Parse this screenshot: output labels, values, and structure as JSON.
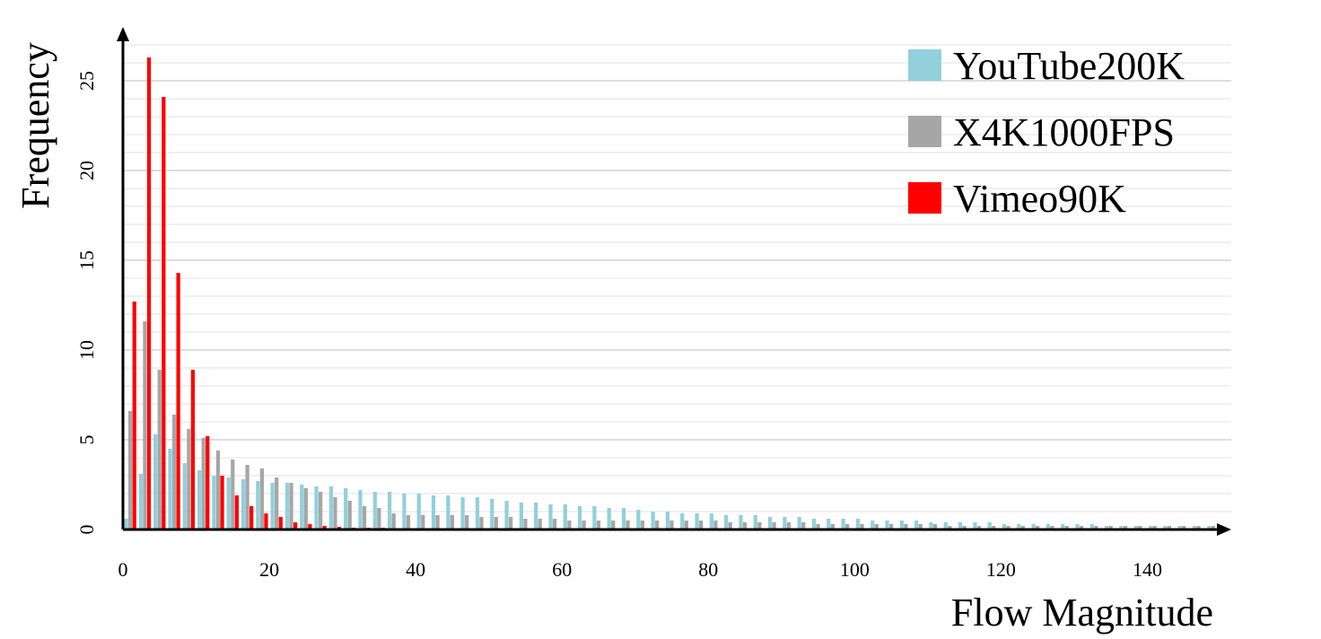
{
  "chart_data": {
    "type": "bar",
    "title": "",
    "xlabel": "Flow Magnitude",
    "ylabel": "Frequency",
    "xlim": [
      0,
      150
    ],
    "ylim": [
      0,
      27
    ],
    "x_ticks": [
      "0",
      "20",
      "40",
      "60",
      "80",
      "100",
      "120",
      "140"
    ],
    "y_ticks": [
      "0",
      "5",
      "10",
      "15",
      "20",
      "25"
    ],
    "grid": true,
    "legend": "top-right",
    "bin_width": 2,
    "x": [
      1,
      3,
      5,
      7,
      9,
      11,
      13,
      15,
      17,
      19,
      21,
      23,
      25,
      27,
      29,
      31,
      33,
      35,
      37,
      39,
      41,
      43,
      45,
      47,
      49,
      51,
      53,
      55,
      57,
      59,
      61,
      63,
      65,
      67,
      69,
      71,
      73,
      75,
      77,
      79,
      81,
      83,
      85,
      87,
      89,
      91,
      93,
      95,
      97,
      99,
      101,
      103,
      105,
      107,
      109,
      111,
      113,
      115,
      117,
      119,
      121,
      123,
      125,
      127,
      129,
      131,
      133,
      135,
      137,
      139,
      141,
      143,
      145,
      147,
      149
    ],
    "series": [
      {
        "name": "YouTube200K",
        "color": "#92d0db",
        "values": [
          0.6,
          3.1,
          5.3,
          4.5,
          3.7,
          3.3,
          3.0,
          2.9,
          2.8,
          2.7,
          2.6,
          2.6,
          2.5,
          2.4,
          2.4,
          2.3,
          2.2,
          2.1,
          2.1,
          2.0,
          2.0,
          1.9,
          1.9,
          1.8,
          1.8,
          1.7,
          1.6,
          1.5,
          1.5,
          1.4,
          1.4,
          1.3,
          1.3,
          1.2,
          1.2,
          1.1,
          1.0,
          1.0,
          0.9,
          0.9,
          0.9,
          0.8,
          0.8,
          0.8,
          0.7,
          0.7,
          0.7,
          0.6,
          0.6,
          0.6,
          0.6,
          0.5,
          0.5,
          0.5,
          0.5,
          0.4,
          0.4,
          0.4,
          0.4,
          0.4,
          0.3,
          0.3,
          0.3,
          0.3,
          0.3,
          0.3,
          0.3,
          0.2,
          0.2,
          0.2,
          0.2,
          0.2,
          0.2,
          0.2,
          0.2
        ]
      },
      {
        "name": "X4K1000FPS",
        "color": "#a6a6a6",
        "values": [
          6.6,
          11.6,
          8.9,
          6.4,
          5.6,
          5.1,
          4.4,
          3.9,
          3.6,
          3.4,
          2.9,
          2.6,
          2.3,
          2.1,
          1.8,
          1.6,
          1.3,
          1.2,
          0.9,
          0.8,
          0.8,
          0.8,
          0.8,
          0.8,
          0.7,
          0.7,
          0.7,
          0.6,
          0.6,
          0.6,
          0.5,
          0.5,
          0.5,
          0.5,
          0.5,
          0.5,
          0.5,
          0.5,
          0.5,
          0.5,
          0.5,
          0.4,
          0.4,
          0.4,
          0.4,
          0.4,
          0.4,
          0.3,
          0.3,
          0.3,
          0.3,
          0.3,
          0.3,
          0.3,
          0.3,
          0.3,
          0.2,
          0.2,
          0.2,
          0.2,
          0.2,
          0.2,
          0.2,
          0.2,
          0.2,
          0.2,
          0.2,
          0.2,
          0.2,
          0.2,
          0.2,
          0.2,
          0.2,
          0.2,
          0.2
        ]
      },
      {
        "name": "Vimeo90K",
        "color": "#ff0000",
        "values": [
          12.7,
          26.3,
          24.1,
          14.3,
          8.9,
          5.2,
          3.0,
          1.9,
          1.3,
          0.9,
          0.7,
          0.4,
          0.3,
          0.2,
          0.15,
          0.1,
          0.1,
          0.1,
          0.05,
          0.05,
          0.05,
          0.05,
          0.05,
          0.05,
          0.05,
          0.05,
          0.05,
          0.05,
          0.05,
          0.05,
          0.05,
          0.05,
          0,
          0,
          0,
          0,
          0,
          0,
          0,
          0,
          0,
          0,
          0,
          0,
          0,
          0,
          0,
          0,
          0,
          0,
          0,
          0,
          0,
          0,
          0,
          0,
          0,
          0,
          0,
          0,
          0,
          0,
          0,
          0,
          0,
          0,
          0,
          0,
          0,
          0,
          0,
          0,
          0,
          0,
          0
        ]
      }
    ]
  }
}
